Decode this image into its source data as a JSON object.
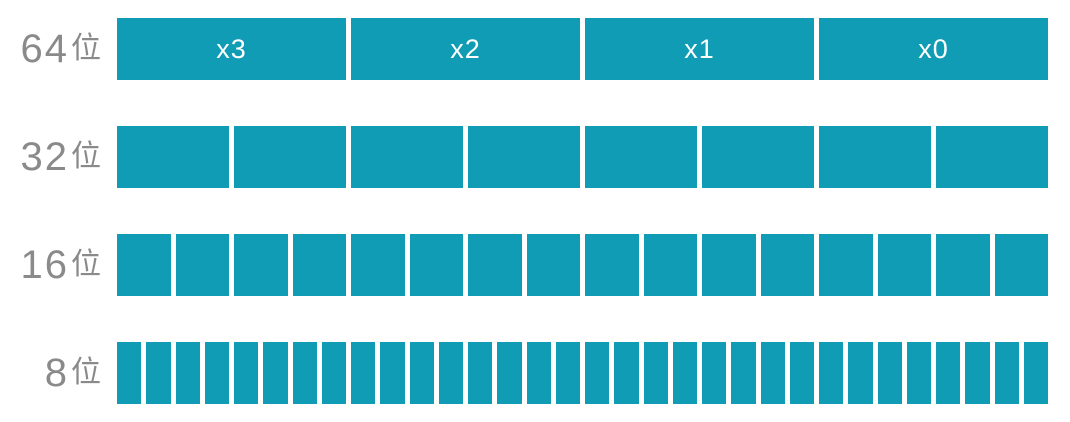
{
  "diagram": {
    "description": "Register divided into lanes by element bit-width",
    "colors": {
      "background": "#ffffff",
      "bar": "#0f9cb4",
      "row_label": "#8a8a8a",
      "segment_label": "#ffffff",
      "gap": "#ffffff"
    },
    "rows": [
      {
        "bits": "64",
        "unit": "位",
        "segments": 4,
        "segment_labels": [
          "x3",
          "x2",
          "x1",
          "x0"
        ]
      },
      {
        "bits": "32",
        "unit": "位",
        "segments": 8,
        "segment_labels": []
      },
      {
        "bits": "16",
        "unit": "位",
        "segments": 16,
        "segment_labels": []
      },
      {
        "bits": "8",
        "unit": "位",
        "segments": 32,
        "segment_labels": []
      }
    ]
  }
}
